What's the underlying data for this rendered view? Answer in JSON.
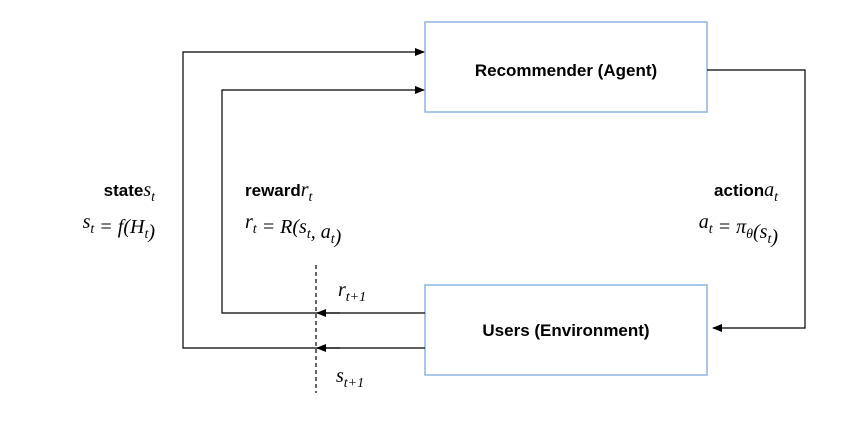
{
  "nodes": [
    {
      "label": "Recommender (Agent)"
    },
    {
      "label": "Users (Environment)"
    }
  ],
  "state": {
    "title": "state",
    "symbol": [
      {
        "text": "s",
        "sub": "t"
      }
    ],
    "formula": [
      {
        "text": "s",
        "sub": "t"
      },
      {
        "text": " = f(H",
        "sub": "t"
      },
      {
        "text": ")"
      }
    ]
  },
  "reward": {
    "title": "reward",
    "symbol": [
      {
        "text": "r",
        "sub": "t"
      }
    ],
    "formula": [
      {
        "text": "r",
        "sub": "t"
      },
      {
        "text": " = R(s",
        "sub": "t"
      },
      {
        "text": ", a",
        "sub": "t"
      },
      {
        "text": ")"
      }
    ]
  },
  "action": {
    "title": "action",
    "symbol": [
      {
        "text": "a",
        "sub": "t"
      }
    ],
    "formula": [
      {
        "text": "a",
        "sub": "t"
      },
      {
        "text": " = π",
        "sub": "θ"
      },
      {
        "text": "(s",
        "sub": "t"
      },
      {
        "text": ")"
      }
    ]
  },
  "next_reward": [
    {
      "text": "r",
      "sub": "t+1"
    }
  ],
  "next_state": [
    {
      "text": "s",
      "sub": "t+1"
    }
  ]
}
